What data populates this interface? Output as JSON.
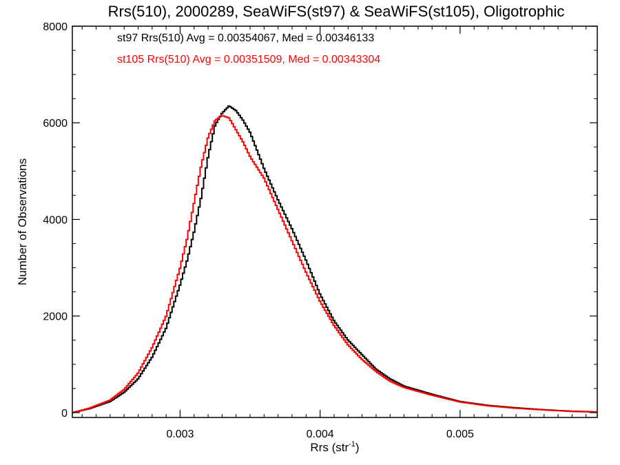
{
  "chart_data": {
    "type": "line",
    "title": "Rrs(510), 2000289, SeaWiFS(st97) & SeaWiFS(st105), Oligotrophic",
    "xlabel_base": "Rrs (str",
    "xlabel_sup": "-1",
    "xlabel_close": ")",
    "ylabel": "Number of Observations",
    "xlim": [
      0.00223,
      0.00598
    ],
    "ylim": [
      -100,
      8000
    ],
    "x_ticks": [
      0.003,
      0.004,
      0.005
    ],
    "x_tick_labels": [
      "0.003",
      "0.004",
      "0.005"
    ],
    "y_ticks": [
      0,
      2000,
      4000,
      6000,
      8000
    ],
    "y_tick_labels": [
      "0",
      "2000",
      "4000",
      "6000",
      "8000"
    ],
    "grid": false,
    "series": [
      {
        "label": "st97 Rrs(510) Avg = 0.00354067, Med = 0.00346133",
        "color": "#000000",
        "x": [
          0.00223,
          0.00235,
          0.0025,
          0.0026,
          0.0027,
          0.0028,
          0.0029,
          0.003,
          0.00305,
          0.0031,
          0.00315,
          0.0032,
          0.00325,
          0.0033,
          0.00335,
          0.0034,
          0.00345,
          0.0035,
          0.0036,
          0.0037,
          0.0038,
          0.0039,
          0.004,
          0.0041,
          0.0042,
          0.0043,
          0.0044,
          0.0045,
          0.0046,
          0.0048,
          0.005,
          0.0052,
          0.0054,
          0.0056,
          0.0058,
          0.00598
        ],
        "y": [
          0,
          80,
          230,
          420,
          700,
          1150,
          1750,
          2650,
          3150,
          3750,
          4450,
          5300,
          5950,
          6200,
          6350,
          6250,
          6050,
          5800,
          5050,
          4400,
          3800,
          3150,
          2450,
          1900,
          1500,
          1200,
          900,
          700,
          550,
          380,
          230,
          150,
          100,
          60,
          30,
          15
        ]
      },
      {
        "label": "st105 Rrs(510) Avg = 0.00351509, Med = 0.00343304",
        "color": "#ff0000",
        "x": [
          0.00223,
          0.00235,
          0.0025,
          0.0026,
          0.0027,
          0.0028,
          0.0029,
          0.003,
          0.00305,
          0.0031,
          0.00315,
          0.0032,
          0.00325,
          0.0033,
          0.00335,
          0.0034,
          0.00345,
          0.0035,
          0.0036,
          0.0037,
          0.0038,
          0.0039,
          0.004,
          0.0041,
          0.0042,
          0.0043,
          0.0044,
          0.0045,
          0.0046,
          0.0048,
          0.005,
          0.0052,
          0.0054,
          0.0056,
          0.0058,
          0.00598
        ],
        "y": [
          0,
          90,
          260,
          480,
          820,
          1350,
          2000,
          3000,
          3600,
          4350,
          5100,
          5700,
          6050,
          6150,
          6100,
          5850,
          5600,
          5300,
          4850,
          4200,
          3550,
          2900,
          2300,
          1800,
          1400,
          1100,
          850,
          650,
          520,
          360,
          220,
          140,
          90,
          55,
          25,
          10
        ]
      }
    ]
  }
}
